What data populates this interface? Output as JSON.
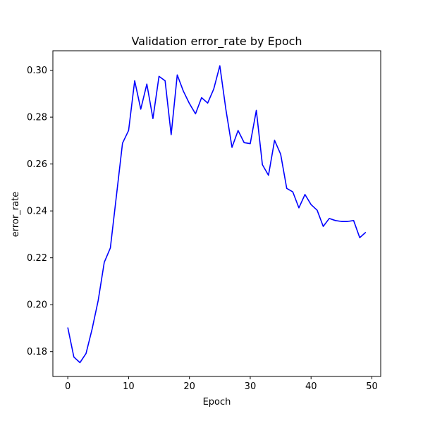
{
  "chart_data": {
    "type": "line",
    "title": "Validation error_rate by Epoch",
    "xlabel": "Epoch",
    "ylabel": "error_rate",
    "xlim": [
      -2.45,
      51.45
    ],
    "ylim": [
      0.1694,
      0.3083
    ],
    "xticks": [
      0,
      10,
      20,
      30,
      40,
      50
    ],
    "yticks": [
      0.18,
      0.2,
      0.22,
      0.24,
      0.26,
      0.28,
      0.3
    ],
    "ytick_decimals": 2,
    "grid": false,
    "series": [
      {
        "color": "#0000ff",
        "x": [
          0,
          1,
          2,
          3,
          4,
          5,
          6,
          7,
          8,
          9,
          10,
          11,
          12,
          13,
          14,
          15,
          16,
          17,
          18,
          19,
          20,
          21,
          22,
          23,
          24,
          25,
          26,
          27,
          28,
          29,
          30,
          31,
          32,
          33,
          34,
          35,
          36,
          37,
          38,
          39,
          40,
          41,
          42,
          43,
          44,
          45,
          46,
          47,
          48,
          49
        ],
        "y": [
          0.1903,
          0.1777,
          0.1753,
          0.1792,
          0.1896,
          0.2018,
          0.2181,
          0.2242,
          0.2465,
          0.2689,
          0.2743,
          0.2955,
          0.2834,
          0.2941,
          0.2794,
          0.2974,
          0.2955,
          0.2725,
          0.298,
          0.2911,
          0.2858,
          0.2814,
          0.2883,
          0.286,
          0.292,
          0.3019,
          0.2832,
          0.2671,
          0.2743,
          0.2691,
          0.2687,
          0.2829,
          0.2597,
          0.2552,
          0.2701,
          0.2642,
          0.2496,
          0.2481,
          0.2413,
          0.247,
          0.2427,
          0.2403,
          0.2334,
          0.2368,
          0.2359,
          0.2355,
          0.2355,
          0.2359,
          0.2286,
          0.2309
        ]
      }
    ]
  }
}
